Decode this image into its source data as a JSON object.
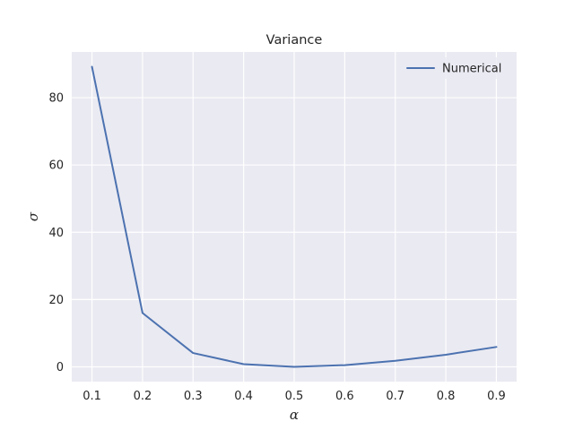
{
  "chart_data": {
    "type": "line",
    "title": "Variance",
    "xlabel": "α",
    "ylabel": "σ",
    "x": [
      0.1,
      0.2,
      0.3,
      0.4,
      0.5,
      0.6,
      0.7,
      0.8,
      0.9
    ],
    "series": [
      {
        "name": "Numerical",
        "color": "#4c72b0",
        "values": [
          89.2,
          16.0,
          4.1,
          0.8,
          0.0,
          0.5,
          1.8,
          3.6,
          5.9
        ]
      }
    ],
    "xticks": [
      "0.1",
      "0.2",
      "0.3",
      "0.4",
      "0.5",
      "0.6",
      "0.7",
      "0.8",
      "0.9"
    ],
    "yticks": [
      "0",
      "20",
      "40",
      "60",
      "80"
    ],
    "xlim": [
      0.06,
      0.94
    ],
    "ylim": [
      -4.4,
      93.6
    ],
    "grid": true,
    "legend_position": "top-right",
    "colors": {
      "background": "#eaeaf2",
      "grid": "#ffffff"
    }
  }
}
